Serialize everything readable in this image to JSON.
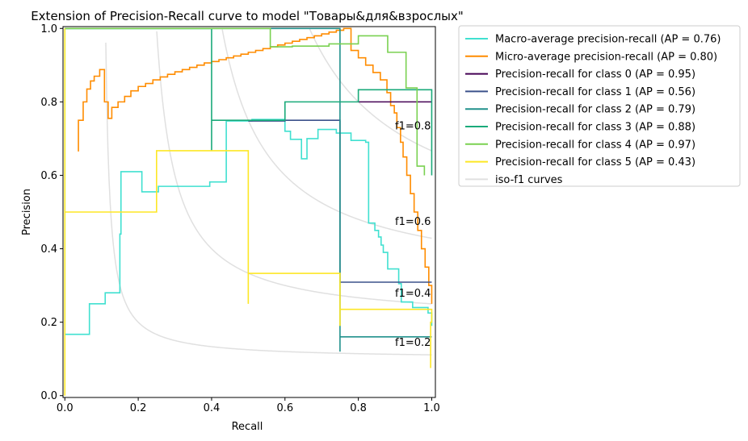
{
  "chart_data": {
    "type": "line",
    "title": "Extension of Precision-Recall curve to model \"Товары&для&взрослых\"",
    "xlabel": "Recall",
    "ylabel": "Precision",
    "xlim": [
      -0.005,
      1.01
    ],
    "ylim": [
      -0.005,
      1.005
    ],
    "xticks": [
      0.0,
      0.2,
      0.4,
      0.6,
      0.8,
      1.0
    ],
    "xtick_labels": [
      "0.0",
      "0.2",
      "0.4",
      "0.6",
      "0.8",
      "1.0"
    ],
    "yticks": [
      0.0,
      0.2,
      0.4,
      0.6,
      0.8,
      1.0
    ],
    "ytick_labels": [
      "0.0",
      "0.2",
      "0.4",
      "0.6",
      "0.8",
      "1.0"
    ],
    "grid": false,
    "legend_position": "outside-right",
    "iso_f1": {
      "name": "iso-f1 curves",
      "color": "#e0e0e0",
      "curves": [
        {
          "f1": 0.2,
          "label": "f1=0.2",
          "label_at": [
            0.9,
            0.135
          ]
        },
        {
          "f1": 0.4,
          "label": "f1=0.4",
          "label_at": [
            0.9,
            0.27
          ]
        },
        {
          "f1": 0.6,
          "label": "f1=0.6",
          "label_at": [
            0.9,
            0.465
          ]
        },
        {
          "f1": 0.8,
          "label": "f1=0.8",
          "label_at": [
            0.9,
            0.725
          ]
        }
      ]
    },
    "series": [
      {
        "name": "Macro-average precision-recall (AP = 0.76)",
        "color": "#40e0d0",
        "points": [
          [
            0.0,
            1.0
          ],
          [
            0.0,
            0.167
          ],
          [
            0.067,
            0.167
          ],
          [
            0.067,
            0.25
          ],
          [
            0.11,
            0.25
          ],
          [
            0.11,
            0.28
          ],
          [
            0.15,
            0.28
          ],
          [
            0.15,
            0.44
          ],
          [
            0.153,
            0.44
          ],
          [
            0.153,
            0.61
          ],
          [
            0.21,
            0.61
          ],
          [
            0.21,
            0.555
          ],
          [
            0.255,
            0.555
          ],
          [
            0.255,
            0.57
          ],
          [
            0.395,
            0.57
          ],
          [
            0.395,
            0.582
          ],
          [
            0.44,
            0.582
          ],
          [
            0.44,
            0.748
          ],
          [
            0.51,
            0.748
          ],
          [
            0.51,
            0.752
          ],
          [
            0.6,
            0.752
          ],
          [
            0.6,
            0.72
          ],
          [
            0.615,
            0.72
          ],
          [
            0.615,
            0.698
          ],
          [
            0.645,
            0.698
          ],
          [
            0.645,
            0.645
          ],
          [
            0.66,
            0.645
          ],
          [
            0.66,
            0.7
          ],
          [
            0.69,
            0.7
          ],
          [
            0.69,
            0.725
          ],
          [
            0.74,
            0.725
          ],
          [
            0.74,
            0.715
          ],
          [
            0.78,
            0.715
          ],
          [
            0.78,
            0.695
          ],
          [
            0.82,
            0.695
          ],
          [
            0.82,
            0.69
          ],
          [
            0.828,
            0.69
          ],
          [
            0.828,
            0.47
          ],
          [
            0.845,
            0.47
          ],
          [
            0.845,
            0.45
          ],
          [
            0.855,
            0.45
          ],
          [
            0.855,
            0.432
          ],
          [
            0.862,
            0.432
          ],
          [
            0.862,
            0.41
          ],
          [
            0.868,
            0.41
          ],
          [
            0.868,
            0.39
          ],
          [
            0.88,
            0.39
          ],
          [
            0.88,
            0.345
          ],
          [
            0.91,
            0.345
          ],
          [
            0.91,
            0.305
          ],
          [
            0.917,
            0.305
          ],
          [
            0.917,
            0.255
          ],
          [
            0.948,
            0.255
          ],
          [
            0.948,
            0.24
          ],
          [
            0.99,
            0.24
          ],
          [
            0.99,
            0.225
          ],
          [
            1.0,
            0.225
          ],
          [
            1.0,
            0.19
          ]
        ]
      },
      {
        "name": "Micro-average precision-recall (AP = 0.80)",
        "color": "#ff8c00",
        "points": [
          [
            0.037,
            0.665
          ],
          [
            0.037,
            0.75
          ],
          [
            0.05,
            0.75
          ],
          [
            0.05,
            0.8
          ],
          [
            0.06,
            0.8
          ],
          [
            0.06,
            0.835
          ],
          [
            0.07,
            0.835
          ],
          [
            0.07,
            0.857
          ],
          [
            0.08,
            0.857
          ],
          [
            0.08,
            0.87
          ],
          [
            0.095,
            0.87
          ],
          [
            0.095,
            0.888
          ],
          [
            0.108,
            0.888
          ],
          [
            0.108,
            0.8
          ],
          [
            0.118,
            0.8
          ],
          [
            0.118,
            0.755
          ],
          [
            0.128,
            0.755
          ],
          [
            0.128,
            0.785
          ],
          [
            0.145,
            0.785
          ],
          [
            0.145,
            0.8
          ],
          [
            0.163,
            0.8
          ],
          [
            0.163,
            0.815
          ],
          [
            0.18,
            0.815
          ],
          [
            0.18,
            0.83
          ],
          [
            0.2,
            0.83
          ],
          [
            0.2,
            0.842
          ],
          [
            0.22,
            0.842
          ],
          [
            0.22,
            0.85
          ],
          [
            0.24,
            0.85
          ],
          [
            0.24,
            0.86
          ],
          [
            0.26,
            0.86
          ],
          [
            0.26,
            0.868
          ],
          [
            0.28,
            0.868
          ],
          [
            0.28,
            0.875
          ],
          [
            0.3,
            0.875
          ],
          [
            0.3,
            0.882
          ],
          [
            0.32,
            0.882
          ],
          [
            0.32,
            0.888
          ],
          [
            0.34,
            0.888
          ],
          [
            0.34,
            0.894
          ],
          [
            0.36,
            0.894
          ],
          [
            0.36,
            0.9
          ],
          [
            0.38,
            0.9
          ],
          [
            0.38,
            0.906
          ],
          [
            0.4,
            0.906
          ],
          [
            0.4,
            0.91
          ],
          [
            0.42,
            0.91
          ],
          [
            0.42,
            0.915
          ],
          [
            0.44,
            0.915
          ],
          [
            0.44,
            0.92
          ],
          [
            0.46,
            0.92
          ],
          [
            0.46,
            0.925
          ],
          [
            0.48,
            0.925
          ],
          [
            0.48,
            0.93
          ],
          [
            0.5,
            0.93
          ],
          [
            0.5,
            0.935
          ],
          [
            0.52,
            0.935
          ],
          [
            0.52,
            0.94
          ],
          [
            0.54,
            0.94
          ],
          [
            0.54,
            0.945
          ],
          [
            0.56,
            0.945
          ],
          [
            0.56,
            0.95
          ],
          [
            0.58,
            0.95
          ],
          [
            0.58,
            0.955
          ],
          [
            0.6,
            0.955
          ],
          [
            0.6,
            0.96
          ],
          [
            0.62,
            0.96
          ],
          [
            0.62,
            0.965
          ],
          [
            0.64,
            0.965
          ],
          [
            0.64,
            0.97
          ],
          [
            0.66,
            0.97
          ],
          [
            0.66,
            0.975
          ],
          [
            0.68,
            0.975
          ],
          [
            0.68,
            0.98
          ],
          [
            0.7,
            0.98
          ],
          [
            0.7,
            0.985
          ],
          [
            0.72,
            0.985
          ],
          [
            0.72,
            0.99
          ],
          [
            0.74,
            0.99
          ],
          [
            0.74,
            0.995
          ],
          [
            0.76,
            0.995
          ],
          [
            0.76,
            1.0
          ],
          [
            0.78,
            1.0
          ],
          [
            0.78,
            0.94
          ],
          [
            0.8,
            0.94
          ],
          [
            0.8,
            0.92
          ],
          [
            0.82,
            0.92
          ],
          [
            0.82,
            0.9
          ],
          [
            0.84,
            0.9
          ],
          [
            0.84,
            0.88
          ],
          [
            0.86,
            0.88
          ],
          [
            0.86,
            0.86
          ],
          [
            0.878,
            0.86
          ],
          [
            0.878,
            0.825
          ],
          [
            0.888,
            0.825
          ],
          [
            0.888,
            0.79
          ],
          [
            0.898,
            0.79
          ],
          [
            0.898,
            0.77
          ],
          [
            0.905,
            0.77
          ],
          [
            0.905,
            0.73
          ],
          [
            0.915,
            0.73
          ],
          [
            0.915,
            0.69
          ],
          [
            0.922,
            0.69
          ],
          [
            0.922,
            0.65
          ],
          [
            0.932,
            0.65
          ],
          [
            0.932,
            0.6
          ],
          [
            0.942,
            0.6
          ],
          [
            0.942,
            0.55
          ],
          [
            0.952,
            0.55
          ],
          [
            0.952,
            0.5
          ],
          [
            0.962,
            0.5
          ],
          [
            0.962,
            0.45
          ],
          [
            0.972,
            0.45
          ],
          [
            0.972,
            0.4
          ],
          [
            0.982,
            0.4
          ],
          [
            0.982,
            0.35
          ],
          [
            0.992,
            0.35
          ],
          [
            0.992,
            0.3
          ],
          [
            1.0,
            0.3
          ],
          [
            1.0,
            0.25
          ]
        ]
      },
      {
        "name": "Precision-recall for class 0 (AP = 0.95)",
        "color": "#440154",
        "points": [
          [
            0.8,
            0.8
          ],
          [
            1.0,
            0.8
          ]
        ]
      },
      {
        "name": "Precision-recall for class 1 (AP = 0.56)",
        "color": "#3b528b",
        "points": [
          [
            0.5,
            0.748
          ],
          [
            0.6,
            0.748
          ],
          [
            0.6,
            0.75
          ],
          [
            0.75,
            0.75
          ],
          [
            0.75,
            0.309
          ],
          [
            1.0,
            0.309
          ]
        ]
      },
      {
        "name": "Precision-recall for class 2 (AP = 0.79)",
        "color": "#21918c",
        "points": [
          [
            0.0,
            1.0
          ],
          [
            0.75,
            1.0
          ],
          [
            0.75,
            0.12
          ],
          [
            0.75,
            0.16
          ],
          [
            1.0,
            0.16
          ]
        ]
      },
      {
        "name": "Precision-recall for class 3 (AP = 0.88)",
        "color": "#1aaa7a",
        "points": [
          [
            0.0,
            1.0
          ],
          [
            0.4,
            1.0
          ],
          [
            0.4,
            0.667
          ],
          [
            0.4,
            0.75
          ],
          [
            0.6,
            0.75
          ],
          [
            0.6,
            0.8
          ],
          [
            0.8,
            0.8
          ],
          [
            0.8,
            0.833
          ],
          [
            1.0,
            0.833
          ],
          [
            1.0,
            0.6
          ]
        ]
      },
      {
        "name": "Precision-recall for class 4 (AP = 0.97)",
        "color": "#7ad151",
        "points": [
          [
            0.0,
            1.0
          ],
          [
            0.56,
            1.0
          ],
          [
            0.56,
            0.95
          ],
          [
            0.62,
            0.95
          ],
          [
            0.62,
            0.952
          ],
          [
            0.72,
            0.952
          ],
          [
            0.72,
            0.958
          ],
          [
            0.8,
            0.958
          ],
          [
            0.8,
            0.98
          ],
          [
            0.88,
            0.98
          ],
          [
            0.88,
            0.935
          ],
          [
            0.93,
            0.935
          ],
          [
            0.93,
            0.838
          ],
          [
            0.96,
            0.838
          ],
          [
            0.96,
            0.625
          ],
          [
            0.98,
            0.625
          ],
          [
            0.98,
            0.6
          ]
        ]
      },
      {
        "name": "Precision-recall for class 5 (AP = 0.43)",
        "color": "#fde725",
        "points": [
          [
            0.0,
            0.0
          ],
          [
            0.0,
            1.0
          ],
          [
            0.0,
            0.5
          ],
          [
            0.25,
            0.5
          ],
          [
            0.25,
            0.667
          ],
          [
            0.5,
            0.667
          ],
          [
            0.5,
            0.25
          ],
          [
            0.5,
            0.333
          ],
          [
            0.75,
            0.333
          ],
          [
            0.75,
            0.19
          ],
          [
            0.75,
            0.235
          ],
          [
            1.0,
            0.235
          ],
          [
            1.0,
            0.2
          ],
          [
            0.997,
            0.2
          ],
          [
            0.997,
            0.075
          ]
        ]
      }
    ]
  }
}
